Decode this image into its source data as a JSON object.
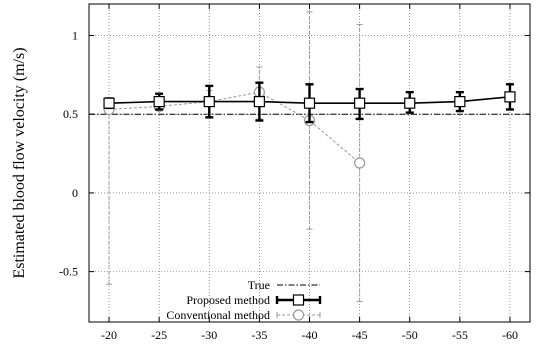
{
  "chart_data": {
    "type": "line",
    "title": "",
    "xlabel": "",
    "ylabel": "Estimated blood flow velocity (m/s)",
    "x": [
      -20,
      -25,
      -30,
      -35,
      -40,
      -45,
      -50,
      -55,
      -60
    ],
    "x_tick_labels": [
      "-20",
      "-25",
      "-30",
      "-35",
      "-40",
      "-45",
      "-50",
      "-55",
      "-60"
    ],
    "xlim": [
      -18,
      -62
    ],
    "ylim": [
      -0.82,
      1.2
    ],
    "y_ticks": [
      -0.5,
      0,
      0.5,
      1
    ],
    "y_tick_labels": [
      "-0.5",
      "0",
      "0.5",
      "1"
    ],
    "grid": true,
    "legend_position": "bottom-left",
    "reference_line": {
      "name": "True",
      "value": 0.5
    },
    "series": [
      {
        "name": "Proposed method",
        "x": [
          -20,
          -25,
          -30,
          -35,
          -40,
          -45,
          -50,
          -55,
          -60
        ],
        "values": [
          0.57,
          0.58,
          0.58,
          0.58,
          0.57,
          0.57,
          0.57,
          0.58,
          0.61
        ],
        "err_low": [
          0.54,
          0.53,
          0.48,
          0.46,
          0.45,
          0.47,
          0.51,
          0.52,
          0.53
        ],
        "err_high": [
          0.6,
          0.63,
          0.68,
          0.7,
          0.69,
          0.66,
          0.64,
          0.64,
          0.69
        ],
        "color": "#000000"
      },
      {
        "name": "Conventional method",
        "x": [
          -20,
          -25,
          -30,
          -35,
          -40,
          -45
        ],
        "values": [
          0.53,
          0.55,
          0.58,
          0.64,
          0.46,
          0.19
        ],
        "err_low": [
          -0.58,
          0.52,
          0.5,
          0.47,
          -0.23,
          -0.69
        ],
        "err_high": [
          0.57,
          0.59,
          0.65,
          0.8,
          1.15,
          1.07
        ],
        "color": "#999999"
      }
    ]
  }
}
